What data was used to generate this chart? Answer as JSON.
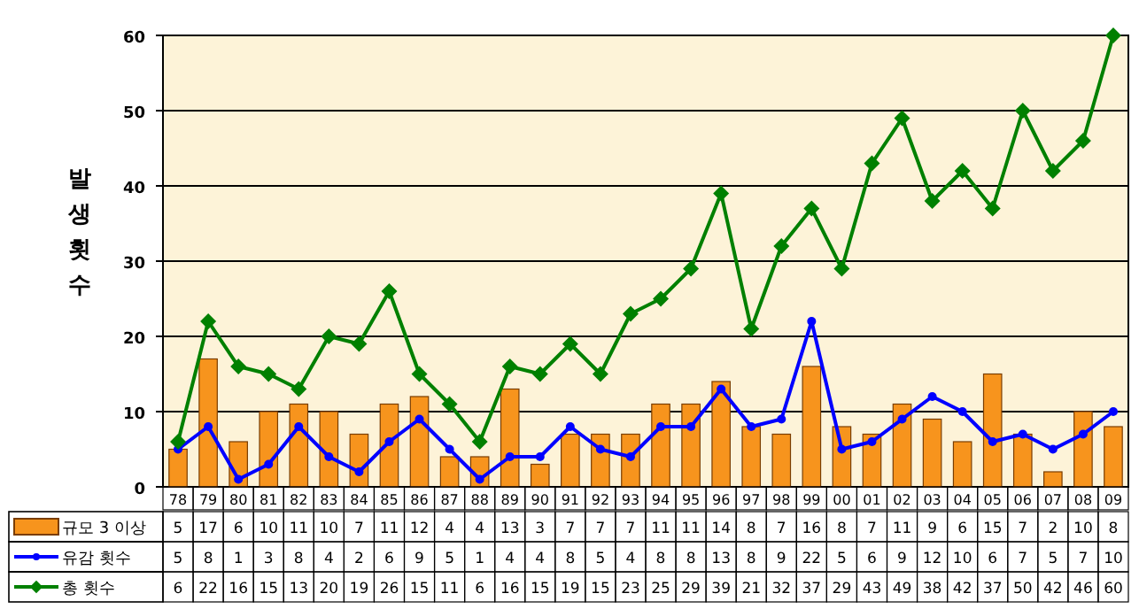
{
  "chart_data": {
    "type": "bar",
    "ylabel": "발생횟수",
    "categories": [
      "78",
      "79",
      "80",
      "81",
      "82",
      "83",
      "84",
      "85",
      "86",
      "87",
      "88",
      "89",
      "90",
      "91",
      "92",
      "93",
      "94",
      "95",
      "96",
      "97",
      "98",
      "99",
      "00",
      "01",
      "02",
      "03",
      "04",
      "05",
      "06",
      "07",
      "08",
      "09"
    ],
    "series": [
      {
        "name": "규모 3 이상",
        "color": "#f7941d",
        "values": [
          5,
          17,
          6,
          10,
          11,
          10,
          7,
          11,
          12,
          4,
          4,
          13,
          3,
          7,
          7,
          7,
          11,
          11,
          14,
          8,
          7,
          16,
          8,
          7,
          11,
          9,
          6,
          15,
          7,
          2,
          10,
          8
        ]
      },
      {
        "name": "유감 횟수",
        "type": "line",
        "color": "#0000ff",
        "marker": "circle",
        "values": [
          5,
          8,
          1,
          3,
          8,
          4,
          2,
          6,
          9,
          5,
          1,
          4,
          4,
          8,
          5,
          4,
          8,
          8,
          13,
          8,
          9,
          22,
          5,
          6,
          9,
          12,
          10,
          6,
          7,
          5,
          7,
          10
        ]
      },
      {
        "name": "총 횟수",
        "type": "line",
        "color": "#008000",
        "marker": "diamond",
        "values": [
          6,
          22,
          16,
          15,
          13,
          20,
          19,
          26,
          15,
          11,
          6,
          16,
          15,
          19,
          15,
          23,
          25,
          29,
          39,
          21,
          32,
          37,
          29,
          43,
          49,
          38,
          42,
          37,
          50,
          42,
          46,
          60
        ]
      }
    ],
    "ylim": [
      0,
      60
    ],
    "yticks": [
      0,
      10,
      20,
      30,
      40,
      50,
      60
    ],
    "grid": "y",
    "legend": "bottom",
    "data_labels": true
  }
}
